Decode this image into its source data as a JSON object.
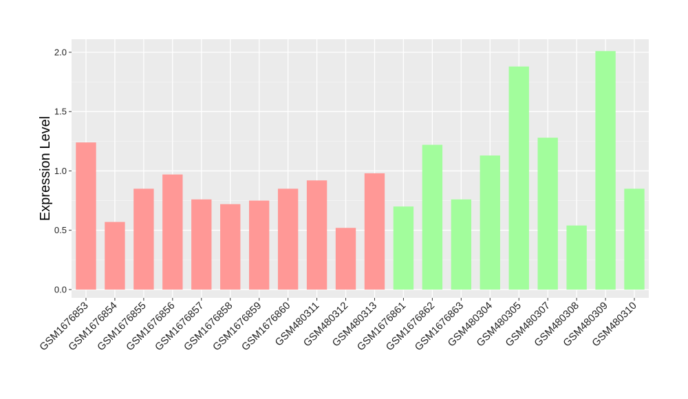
{
  "chart_data": {
    "type": "bar",
    "title": "",
    "xlabel": "",
    "ylabel": "Expression Level",
    "ylim": [
      -0.07,
      2.11
    ],
    "yticks": [
      0.0,
      0.5,
      1.0,
      1.5,
      2.0
    ],
    "ytick_labels": [
      "0.0",
      "0.5",
      "1.0",
      "1.5",
      "2.0"
    ],
    "grid": true,
    "legend": "none",
    "categories": [
      "GSM1676853",
      "GSM1676854",
      "GSM1676855",
      "GSM1676856",
      "GSM1676857",
      "GSM1676858",
      "GSM1676859",
      "GSM1676860",
      "GSM480311",
      "GSM480312",
      "GSM480313",
      "GSM1676861",
      "GSM1676862",
      "GSM1676863",
      "GSM480304",
      "GSM480305",
      "GSM480307",
      "GSM480308",
      "GSM480309",
      "GSM480310"
    ],
    "values": [
      1.24,
      0.57,
      0.85,
      0.97,
      0.76,
      0.72,
      0.75,
      0.85,
      0.92,
      0.52,
      0.98,
      0.7,
      1.22,
      0.76,
      1.13,
      1.88,
      1.28,
      0.54,
      2.01,
      0.85
    ],
    "groups": [
      "a",
      "a",
      "a",
      "a",
      "a",
      "a",
      "a",
      "a",
      "a",
      "a",
      "a",
      "b",
      "b",
      "b",
      "b",
      "b",
      "b",
      "b",
      "b",
      "b"
    ],
    "colors": {
      "a": "#ff9896",
      "b": "#a2fd9c",
      "panel": "#ebebeb",
      "grid_major": "#ffffff",
      "grid_minor": "#f4f4f4"
    }
  }
}
